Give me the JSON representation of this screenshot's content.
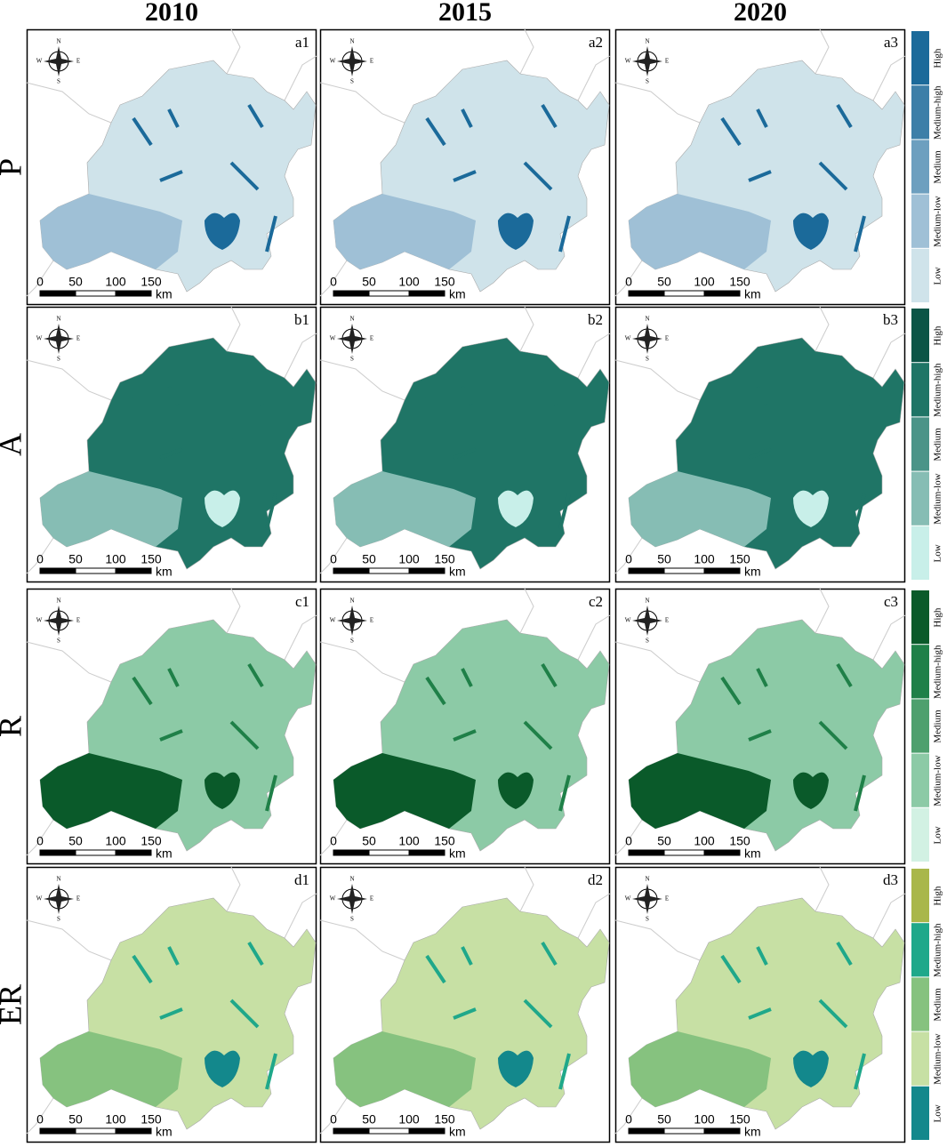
{
  "columns": [
    "2010",
    "2015",
    "2020"
  ],
  "rows": [
    {
      "label": "P",
      "panels": [
        "a1",
        "a2",
        "a3"
      ],
      "legend": [
        {
          "label": "High",
          "color": "#1b6a9a"
        },
        {
          "label": "Medium-high",
          "color": "#3d7fa8"
        },
        {
          "label": "Medium",
          "color": "#6d9fbf"
        },
        {
          "label": "Medium-low",
          "color": "#9fc0d6"
        },
        {
          "label": "Low",
          "color": "#cfe3ea"
        }
      ]
    },
    {
      "label": "A",
      "panels": [
        "b1",
        "b2",
        "b3"
      ],
      "legend": [
        {
          "label": "High",
          "color": "#0b5547"
        },
        {
          "label": "Medium-high",
          "color": "#1f7566"
        },
        {
          "label": "Medium",
          "color": "#4b9488"
        },
        {
          "label": "Medium-low",
          "color": "#86bdb4"
        },
        {
          "label": "Low",
          "color": "#c8efe9"
        }
      ]
    },
    {
      "label": "R",
      "panels": [
        "c1",
        "c2",
        "c3"
      ],
      "legend": [
        {
          "label": "High",
          "color": "#0a5a2a"
        },
        {
          "label": "Medium-high",
          "color": "#1f8048"
        },
        {
          "label": "Medium",
          "color": "#4ea06e"
        },
        {
          "label": "Medium-low",
          "color": "#8ccaa6"
        },
        {
          "label": "Low",
          "color": "#d2f1e3"
        }
      ]
    },
    {
      "label": "ER",
      "panels": [
        "d1",
        "d2",
        "d3"
      ],
      "legend": [
        {
          "label": "High",
          "color": "#a9b74a"
        },
        {
          "label": "Medium-high",
          "color": "#1fa88a"
        },
        {
          "label": "Medium",
          "color": "#86c27f"
        },
        {
          "label": "Medium-low",
          "color": "#c7e0a4"
        },
        {
          "label": "Low",
          "color": "#13888c"
        }
      ]
    }
  ],
  "scale_bar": {
    "ticks": [
      "0",
      "50",
      "100",
      "150"
    ],
    "unit": "km"
  },
  "compass": {
    "north": "N",
    "south": "S",
    "west": "W",
    "east": "E"
  }
}
